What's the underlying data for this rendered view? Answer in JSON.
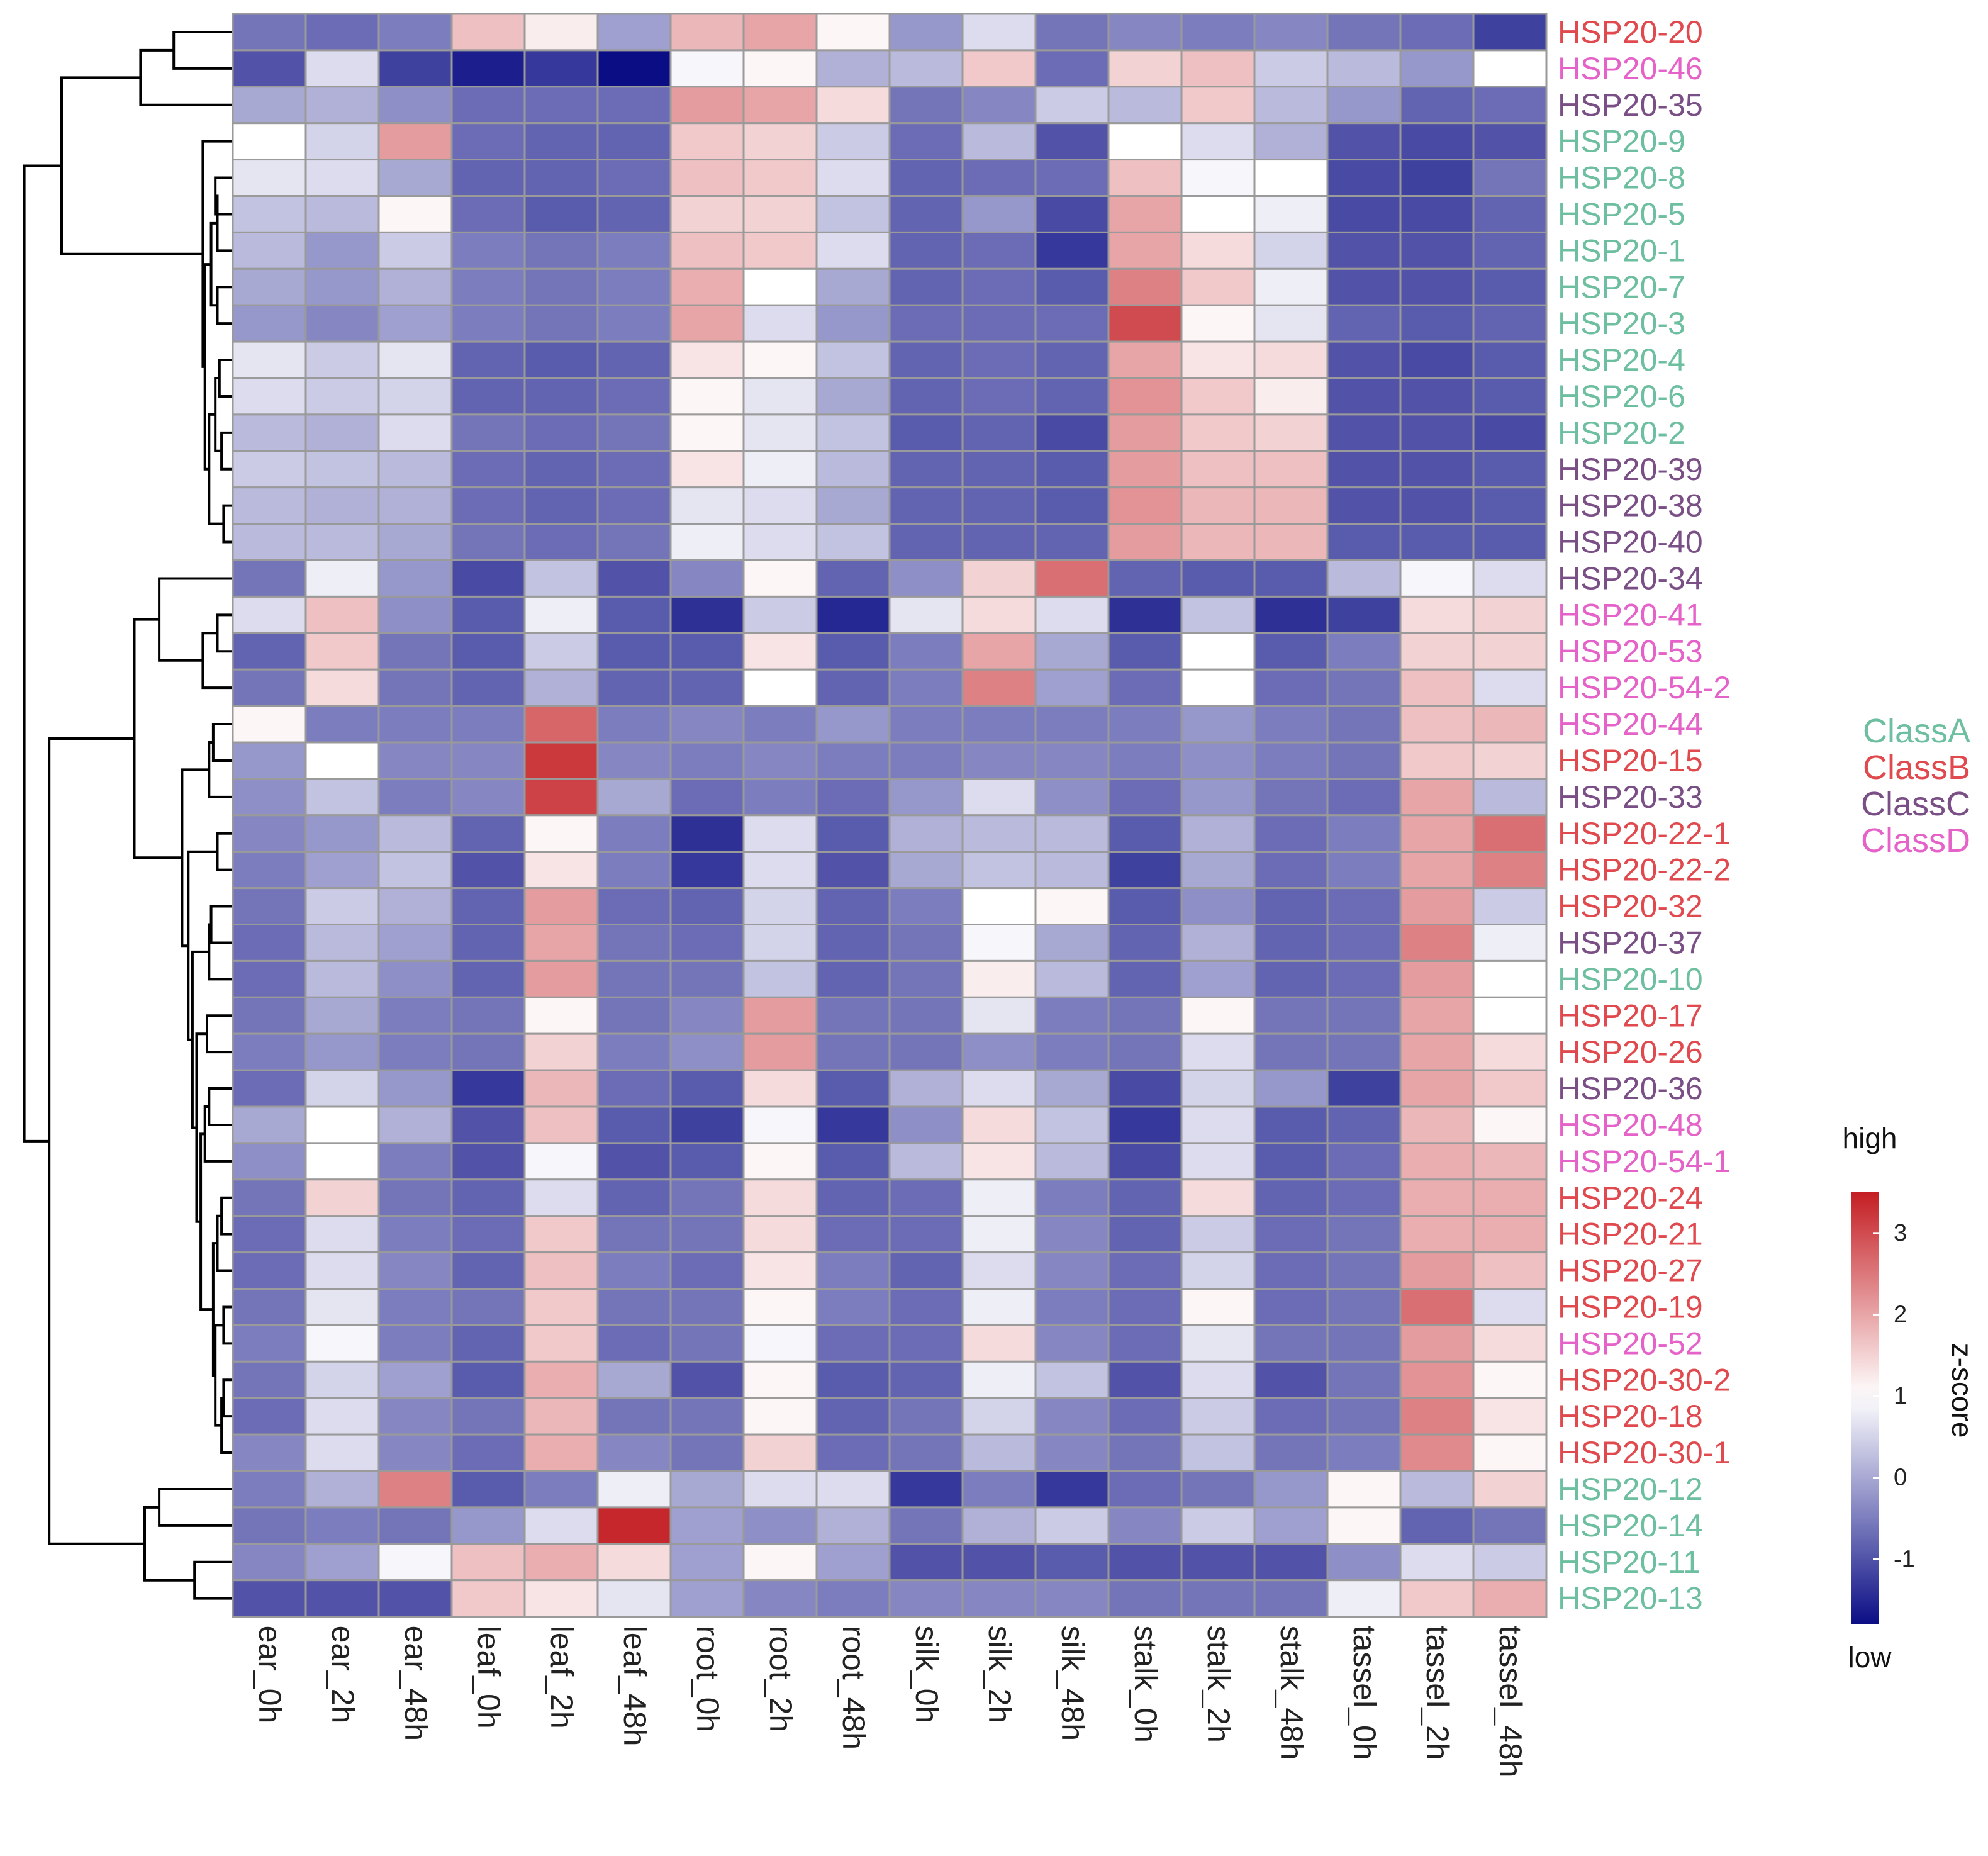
{
  "chart_data": {
    "type": "heatmap",
    "columns": [
      "ear_0h",
      "ear_2h",
      "ear_48h",
      "leaf_0h",
      "leaf_2h",
      "leaf_48h",
      "root_0h",
      "root_2h",
      "root_48h",
      "silk_0h",
      "silk_2h",
      "silk_48h",
      "stalk_0h",
      "stalk_2h",
      "stalk_48h",
      "tassel_0h",
      "tassel_2h",
      "tassel_48h"
    ],
    "rows": [
      {
        "label": "HSP20-20",
        "class": "ClassB",
        "values": [
          -0.6,
          -0.7,
          -0.5,
          1.7,
          1.2,
          -0.1,
          1.8,
          2.0,
          1.1,
          -0.2,
          0.6,
          -0.6,
          -0.4,
          -0.5,
          -0.4,
          -0.6,
          -0.7,
          -1.2
        ]
      },
      {
        "label": "HSP20-46",
        "class": "ClassD",
        "values": [
          -1.0,
          0.6,
          -1.2,
          -1.6,
          -1.3,
          -1.8,
          0.9,
          1.1,
          0.1,
          0.2,
          1.6,
          -0.7,
          1.5,
          1.7,
          0.4,
          0.2,
          -0.2,
          1.0
        ]
      },
      {
        "label": "HSP20-35",
        "class": "ClassC",
        "values": [
          0.0,
          0.1,
          -0.3,
          -0.7,
          -0.7,
          -0.7,
          2.1,
          2.0,
          1.4,
          -0.6,
          -0.4,
          0.4,
          0.2,
          1.6,
          0.2,
          -0.2,
          -0.8,
          -0.7
        ]
      },
      {
        "label": "HSP20-9",
        "class": "ClassA",
        "values": [
          1.0,
          0.5,
          2.1,
          -0.7,
          -0.8,
          -0.8,
          1.6,
          1.5,
          0.4,
          -0.7,
          0.2,
          -1.0,
          1.0,
          0.6,
          0.1,
          -1.0,
          -1.1,
          -1.0
        ]
      },
      {
        "label": "HSP20-8",
        "class": "ClassA",
        "values": [
          0.7,
          0.6,
          0.0,
          -0.8,
          -0.8,
          -0.7,
          1.7,
          1.6,
          0.6,
          -0.8,
          -0.7,
          -0.7,
          1.7,
          0.9,
          1.0,
          -1.1,
          -1.2,
          -0.6
        ]
      },
      {
        "label": "HSP20-5",
        "class": "ClassA",
        "values": [
          0.3,
          0.2,
          1.1,
          -0.7,
          -0.9,
          -0.8,
          1.5,
          1.5,
          0.3,
          -0.8,
          -0.2,
          -1.1,
          2.0,
          1.0,
          0.8,
          -1.1,
          -1.1,
          -0.8
        ]
      },
      {
        "label": "HSP20-1",
        "class": "ClassA",
        "values": [
          0.2,
          -0.2,
          0.4,
          -0.5,
          -0.6,
          -0.5,
          1.7,
          1.6,
          0.6,
          -0.8,
          -0.7,
          -1.3,
          2.0,
          1.4,
          0.5,
          -1.0,
          -1.0,
          -0.8
        ]
      },
      {
        "label": "HSP20-7",
        "class": "ClassA",
        "values": [
          0.0,
          -0.2,
          0.1,
          -0.5,
          -0.6,
          -0.5,
          1.9,
          1.0,
          0.0,
          -0.8,
          -0.7,
          -0.9,
          2.4,
          1.6,
          0.8,
          -1.0,
          -1.0,
          -0.9
        ]
      },
      {
        "label": "HSP20-3",
        "class": "ClassA",
        "values": [
          -0.2,
          -0.4,
          -0.1,
          -0.5,
          -0.6,
          -0.5,
          2.0,
          0.6,
          -0.2,
          -0.7,
          -0.7,
          -0.7,
          3.0,
          1.1,
          0.7,
          -0.8,
          -0.9,
          -0.8
        ]
      },
      {
        "label": "HSP20-4",
        "class": "ClassA",
        "values": [
          0.7,
          0.4,
          0.7,
          -0.8,
          -0.9,
          -0.8,
          1.3,
          1.1,
          0.3,
          -0.8,
          -0.7,
          -0.8,
          2.0,
          1.3,
          1.4,
          -1.0,
          -1.1,
          -0.9
        ]
      },
      {
        "label": "HSP20-6",
        "class": "ClassA",
        "values": [
          0.6,
          0.4,
          0.5,
          -0.8,
          -0.8,
          -0.7,
          1.1,
          0.7,
          0.0,
          -0.8,
          -0.7,
          -0.8,
          2.2,
          1.6,
          1.2,
          -1.0,
          -1.0,
          -0.9
        ]
      },
      {
        "label": "HSP20-2",
        "class": "ClassA",
        "values": [
          0.2,
          0.1,
          0.6,
          -0.6,
          -0.7,
          -0.6,
          1.1,
          0.7,
          0.3,
          -0.9,
          -0.8,
          -1.1,
          2.1,
          1.6,
          1.5,
          -1.0,
          -1.0,
          -1.1
        ]
      },
      {
        "label": "HSP20-39",
        "class": "ClassC",
        "values": [
          0.4,
          0.3,
          0.2,
          -0.7,
          -0.8,
          -0.7,
          1.3,
          0.8,
          0.2,
          -0.8,
          -0.8,
          -0.9,
          2.1,
          1.7,
          1.7,
          -1.0,
          -1.0,
          -0.9
        ]
      },
      {
        "label": "HSP20-38",
        "class": "ClassC",
        "values": [
          0.2,
          0.1,
          0.1,
          -0.7,
          -0.8,
          -0.7,
          0.7,
          0.6,
          0.0,
          -0.8,
          -0.8,
          -0.9,
          2.2,
          1.8,
          1.8,
          -1.0,
          -1.0,
          -0.9
        ]
      },
      {
        "label": "HSP20-40",
        "class": "ClassC",
        "values": [
          0.2,
          0.2,
          0.0,
          -0.6,
          -0.7,
          -0.6,
          0.8,
          0.6,
          0.3,
          -0.8,
          -0.8,
          -0.8,
          2.1,
          1.8,
          1.8,
          -0.9,
          -0.9,
          -0.9
        ]
      },
      {
        "label": "HSP20-34",
        "class": "ClassC",
        "values": [
          -0.6,
          0.8,
          -0.2,
          -1.1,
          0.3,
          -1.0,
          -0.4,
          1.1,
          -0.8,
          -0.3,
          1.5,
          2.6,
          -0.8,
          -0.9,
          -0.9,
          0.2,
          0.9,
          0.6
        ]
      },
      {
        "label": "HSP20-41",
        "class": "ClassD",
        "values": [
          0.6,
          1.7,
          -0.3,
          -0.9,
          0.8,
          -0.9,
          -1.4,
          0.4,
          -1.5,
          0.7,
          1.4,
          0.6,
          -1.4,
          0.3,
          -1.4,
          -1.2,
          1.4,
          1.5
        ]
      },
      {
        "label": "HSP20-53",
        "class": "ClassD",
        "values": [
          -0.8,
          1.6,
          -0.6,
          -0.9,
          0.4,
          -0.9,
          -0.9,
          1.3,
          -0.9,
          -0.5,
          2.0,
          0.0,
          -0.9,
          1.0,
          -0.9,
          -0.5,
          1.5,
          1.5
        ]
      },
      {
        "label": "HSP20-54-2",
        "class": "ClassD",
        "values": [
          -0.6,
          1.4,
          -0.6,
          -0.8,
          0.1,
          -0.8,
          -0.8,
          1.0,
          -0.8,
          -0.5,
          2.4,
          -0.1,
          -0.7,
          1.0,
          -0.7,
          -0.6,
          1.7,
          0.6
        ]
      },
      {
        "label": "HSP20-44",
        "class": "ClassD",
        "values": [
          1.1,
          -0.5,
          -0.5,
          -0.5,
          2.7,
          -0.5,
          -0.4,
          -0.5,
          -0.2,
          -0.5,
          -0.5,
          -0.5,
          -0.5,
          -0.2,
          -0.5,
          -0.6,
          1.7,
          1.8
        ]
      },
      {
        "label": "HSP20-15",
        "class": "ClassB",
        "values": [
          -0.2,
          1.0,
          -0.4,
          -0.4,
          3.2,
          -0.4,
          -0.5,
          -0.4,
          -0.5,
          -0.5,
          -0.4,
          -0.4,
          -0.5,
          -0.3,
          -0.5,
          -0.6,
          1.6,
          1.5
        ]
      },
      {
        "label": "HSP20-33",
        "class": "ClassC",
        "values": [
          -0.3,
          0.3,
          -0.5,
          -0.4,
          3.1,
          0.0,
          -0.7,
          -0.5,
          -0.7,
          -0.2,
          0.6,
          -0.3,
          -0.7,
          -0.2,
          -0.6,
          -0.7,
          2.0,
          0.2
        ]
      },
      {
        "label": "HSP20-22-1",
        "class": "ClassB",
        "values": [
          -0.4,
          -0.2,
          0.2,
          -0.8,
          1.1,
          -0.5,
          -1.4,
          0.6,
          -0.9,
          0.1,
          0.2,
          0.2,
          -0.9,
          0.1,
          -0.7,
          -0.5,
          2.0,
          2.6
        ]
      },
      {
        "label": "HSP20-22-2",
        "class": "ClassB",
        "values": [
          -0.5,
          -0.1,
          0.3,
          -1.0,
          1.3,
          -0.5,
          -1.3,
          0.6,
          -1.0,
          0.0,
          0.3,
          0.2,
          -1.2,
          0.0,
          -0.7,
          -0.5,
          2.0,
          2.4
        ]
      },
      {
        "label": "HSP20-32",
        "class": "ClassB",
        "values": [
          -0.6,
          0.4,
          0.1,
          -0.8,
          2.1,
          -0.7,
          -0.8,
          0.5,
          -0.8,
          -0.5,
          1.0,
          1.1,
          -0.9,
          -0.3,
          -0.8,
          -0.7,
          2.1,
          0.4
        ]
      },
      {
        "label": "HSP20-37",
        "class": "ClassC",
        "values": [
          -0.7,
          0.2,
          -0.1,
          -0.8,
          2.0,
          -0.6,
          -0.7,
          0.5,
          -0.8,
          -0.6,
          0.9,
          0.0,
          -0.8,
          0.1,
          -0.8,
          -0.7,
          2.4,
          0.8
        ]
      },
      {
        "label": "HSP20-10",
        "class": "ClassA",
        "values": [
          -0.7,
          0.2,
          -0.3,
          -0.8,
          2.1,
          -0.6,
          -0.6,
          0.3,
          -0.8,
          -0.6,
          1.2,
          0.2,
          -0.8,
          -0.1,
          -0.8,
          -0.7,
          2.1,
          1.0
        ]
      },
      {
        "label": "HSP20-17",
        "class": "ClassB",
        "values": [
          -0.6,
          0.0,
          -0.5,
          -0.6,
          1.1,
          -0.6,
          -0.4,
          2.1,
          -0.6,
          -0.6,
          0.7,
          -0.5,
          -0.6,
          1.1,
          -0.6,
          -0.6,
          2.0,
          1.0
        ]
      },
      {
        "label": "HSP20-26",
        "class": "ClassB",
        "values": [
          -0.5,
          -0.2,
          -0.5,
          -0.6,
          1.5,
          -0.5,
          -0.3,
          2.1,
          -0.6,
          -0.6,
          -0.3,
          -0.5,
          -0.6,
          0.6,
          -0.6,
          -0.6,
          2.0,
          1.4
        ]
      },
      {
        "label": "HSP20-36",
        "class": "ClassC",
        "values": [
          -0.7,
          0.5,
          -0.2,
          -1.3,
          1.8,
          -0.7,
          -0.9,
          1.4,
          -0.9,
          0.1,
          0.6,
          0.0,
          -1.1,
          0.5,
          -0.2,
          -1.2,
          2.0,
          1.6
        ]
      },
      {
        "label": "HSP20-48",
        "class": "ClassD",
        "values": [
          0.0,
          1.0,
          0.1,
          -1.0,
          1.7,
          -0.9,
          -1.2,
          0.9,
          -1.3,
          -0.3,
          1.4,
          0.3,
          -1.3,
          0.6,
          -0.9,
          -0.8,
          1.8,
          1.1
        ]
      },
      {
        "label": "HSP20-54-1",
        "class": "ClassD",
        "values": [
          -0.3,
          1.0,
          -0.5,
          -1.0,
          0.9,
          -1.0,
          -0.9,
          1.1,
          -0.9,
          0.2,
          1.3,
          0.2,
          -1.1,
          0.6,
          -0.9,
          -0.7,
          1.9,
          1.8
        ]
      },
      {
        "label": "HSP20-24",
        "class": "ClassB",
        "values": [
          -0.6,
          1.5,
          -0.6,
          -0.8,
          0.6,
          -0.8,
          -0.6,
          1.4,
          -0.8,
          -0.7,
          0.8,
          -0.5,
          -0.8,
          1.4,
          -0.8,
          -0.7,
          1.9,
          1.9
        ]
      },
      {
        "label": "HSP20-21",
        "class": "ClassB",
        "values": [
          -0.7,
          0.6,
          -0.5,
          -0.7,
          1.6,
          -0.6,
          -0.6,
          1.4,
          -0.7,
          -0.7,
          0.8,
          -0.4,
          -0.8,
          0.4,
          -0.7,
          -0.6,
          1.9,
          1.9
        ]
      },
      {
        "label": "HSP20-27",
        "class": "ClassB",
        "values": [
          -0.7,
          0.6,
          -0.4,
          -0.8,
          1.7,
          -0.5,
          -0.7,
          1.3,
          -0.5,
          -0.8,
          0.6,
          -0.4,
          -0.7,
          0.5,
          -0.7,
          -0.6,
          2.1,
          1.7
        ]
      },
      {
        "label": "HSP20-19",
        "class": "ClassB",
        "values": [
          -0.6,
          0.7,
          -0.5,
          -0.6,
          1.6,
          -0.6,
          -0.6,
          1.1,
          -0.5,
          -0.7,
          0.8,
          -0.5,
          -0.7,
          1.1,
          -0.7,
          -0.6,
          2.6,
          0.6
        ]
      },
      {
        "label": "HSP20-52",
        "class": "ClassD",
        "values": [
          -0.5,
          0.9,
          -0.5,
          -0.8,
          1.6,
          -0.7,
          -0.6,
          0.9,
          -0.7,
          -0.7,
          1.4,
          -0.4,
          -0.7,
          0.7,
          -0.6,
          -0.6,
          2.1,
          1.4
        ]
      },
      {
        "label": "HSP20-30-2",
        "class": "ClassB",
        "values": [
          -0.6,
          0.5,
          -0.1,
          -0.9,
          1.9,
          0.0,
          -1.0,
          1.1,
          -0.9,
          -0.8,
          0.8,
          0.3,
          -1.0,
          0.6,
          -1.0,
          -0.6,
          2.2,
          1.1
        ]
      },
      {
        "label": "HSP20-18",
        "class": "ClassB",
        "values": [
          -0.7,
          0.6,
          -0.4,
          -0.6,
          1.8,
          -0.6,
          -0.6,
          1.1,
          -0.8,
          -0.6,
          0.5,
          -0.4,
          -0.7,
          0.4,
          -0.7,
          -0.6,
          2.4,
          1.3
        ]
      },
      {
        "label": "HSP20-30-1",
        "class": "ClassB",
        "values": [
          -0.4,
          0.6,
          -0.4,
          -0.7,
          1.9,
          -0.4,
          -0.6,
          1.5,
          -0.7,
          -0.6,
          0.2,
          -0.4,
          -0.6,
          0.3,
          -0.6,
          -0.5,
          2.3,
          1.1
        ]
      },
      {
        "label": "HSP20-12",
        "class": "ClassA",
        "values": [
          -0.5,
          0.1,
          2.4,
          -0.9,
          -0.5,
          0.8,
          0.0,
          0.6,
          0.6,
          -1.3,
          -0.5,
          -1.3,
          -0.7,
          -0.6,
          -0.2,
          1.1,
          0.2,
          1.5
        ]
      },
      {
        "label": "HSP20-14",
        "class": "ClassA",
        "values": [
          -0.6,
          -0.5,
          -0.6,
          -0.2,
          0.6,
          3.4,
          -0.1,
          -0.3,
          0.1,
          -0.6,
          0.1,
          0.4,
          -0.4,
          0.4,
          -0.1,
          1.1,
          -0.8,
          -0.6
        ]
      },
      {
        "label": "HSP20-11",
        "class": "ClassA",
        "values": [
          -0.4,
          -0.1,
          0.9,
          1.7,
          1.9,
          1.4,
          -0.1,
          1.1,
          -0.1,
          -1.0,
          -1.0,
          -0.9,
          -1.0,
          -1.0,
          -1.0,
          -0.3,
          0.6,
          0.4
        ]
      },
      {
        "label": "HSP20-13",
        "class": "ClassA",
        "values": [
          -1.0,
          -1.0,
          -1.0,
          1.6,
          1.3,
          0.7,
          -0.1,
          -0.4,
          -0.5,
          -0.4,
          -0.4,
          -0.4,
          -0.6,
          -0.6,
          -0.6,
          0.8,
          1.6,
          1.9
        ]
      }
    ],
    "classes": [
      {
        "name": "ClassA",
        "color": "#6dbf9f"
      },
      {
        "name": "ClassB",
        "color": "#e04a4f"
      },
      {
        "name": "ClassC",
        "color": "#7a4f86"
      },
      {
        "name": "ClassD",
        "color": "#e562c9"
      }
    ],
    "colorbar": {
      "title": "z-score",
      "high_label": "high",
      "low_label": "low",
      "ticks": [
        "3",
        "2",
        "1",
        "0",
        "-1"
      ],
      "tick_values": [
        3,
        2,
        1,
        0,
        -1
      ],
      "range": [
        -1.8,
        3.5
      ],
      "colors": {
        "low": "#0b0d85",
        "mid": "#ffffff",
        "high": "#c41e23"
      },
      "mid_value": 1
    },
    "dendrogram": "row clustering tree on the left"
  }
}
